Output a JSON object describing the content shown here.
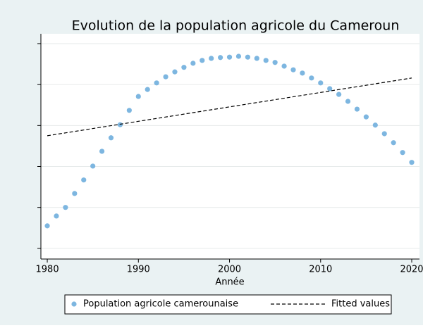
{
  "chart_data": {
    "type": "scatter",
    "title": "Evolution de la population agricole du Cameroun",
    "xlabel": "Année",
    "xlim": [
      1979.3,
      2020.85
    ],
    "xticks": [
      1980,
      1990,
      2000,
      2010,
      2020
    ],
    "ylim": [
      -0.26,
      5.24
    ],
    "yticks": [
      0,
      1,
      2,
      3,
      4,
      5
    ],
    "grid": true,
    "legend": "bottom",
    "series": [
      {
        "name": "Population agricole camerounaise",
        "type": "scatter",
        "color": "#7db6e0",
        "x": [
          1980,
          1981,
          1982,
          1983,
          1984,
          1985,
          1986,
          1987,
          1988,
          1989,
          1990,
          1991,
          1992,
          1993,
          1994,
          1995,
          1996,
          1997,
          1998,
          1999,
          2000,
          2001,
          2002,
          2003,
          2004,
          2005,
          2006,
          2007,
          2008,
          2009,
          2010,
          2011,
          2012,
          2013,
          2014,
          2015,
          2016,
          2017,
          2018,
          2019,
          2020
        ],
        "values": [
          0.55,
          0.79,
          1.0,
          1.34,
          1.67,
          2.01,
          2.37,
          2.7,
          3.02,
          3.37,
          3.71,
          3.88,
          4.04,
          4.19,
          4.31,
          4.42,
          4.52,
          4.59,
          4.64,
          4.66,
          4.67,
          4.69,
          4.67,
          4.64,
          4.59,
          4.54,
          4.45,
          4.36,
          4.28,
          4.16,
          4.04,
          3.9,
          3.76,
          3.59,
          3.4,
          3.21,
          3.01,
          2.8,
          2.58,
          2.34,
          2.1
        ]
      },
      {
        "name": "Fitted values",
        "type": "line",
        "color": "#000000",
        "dash": true,
        "x": [
          1980,
          2020
        ],
        "values": [
          2.75,
          4.16
        ]
      }
    ]
  }
}
